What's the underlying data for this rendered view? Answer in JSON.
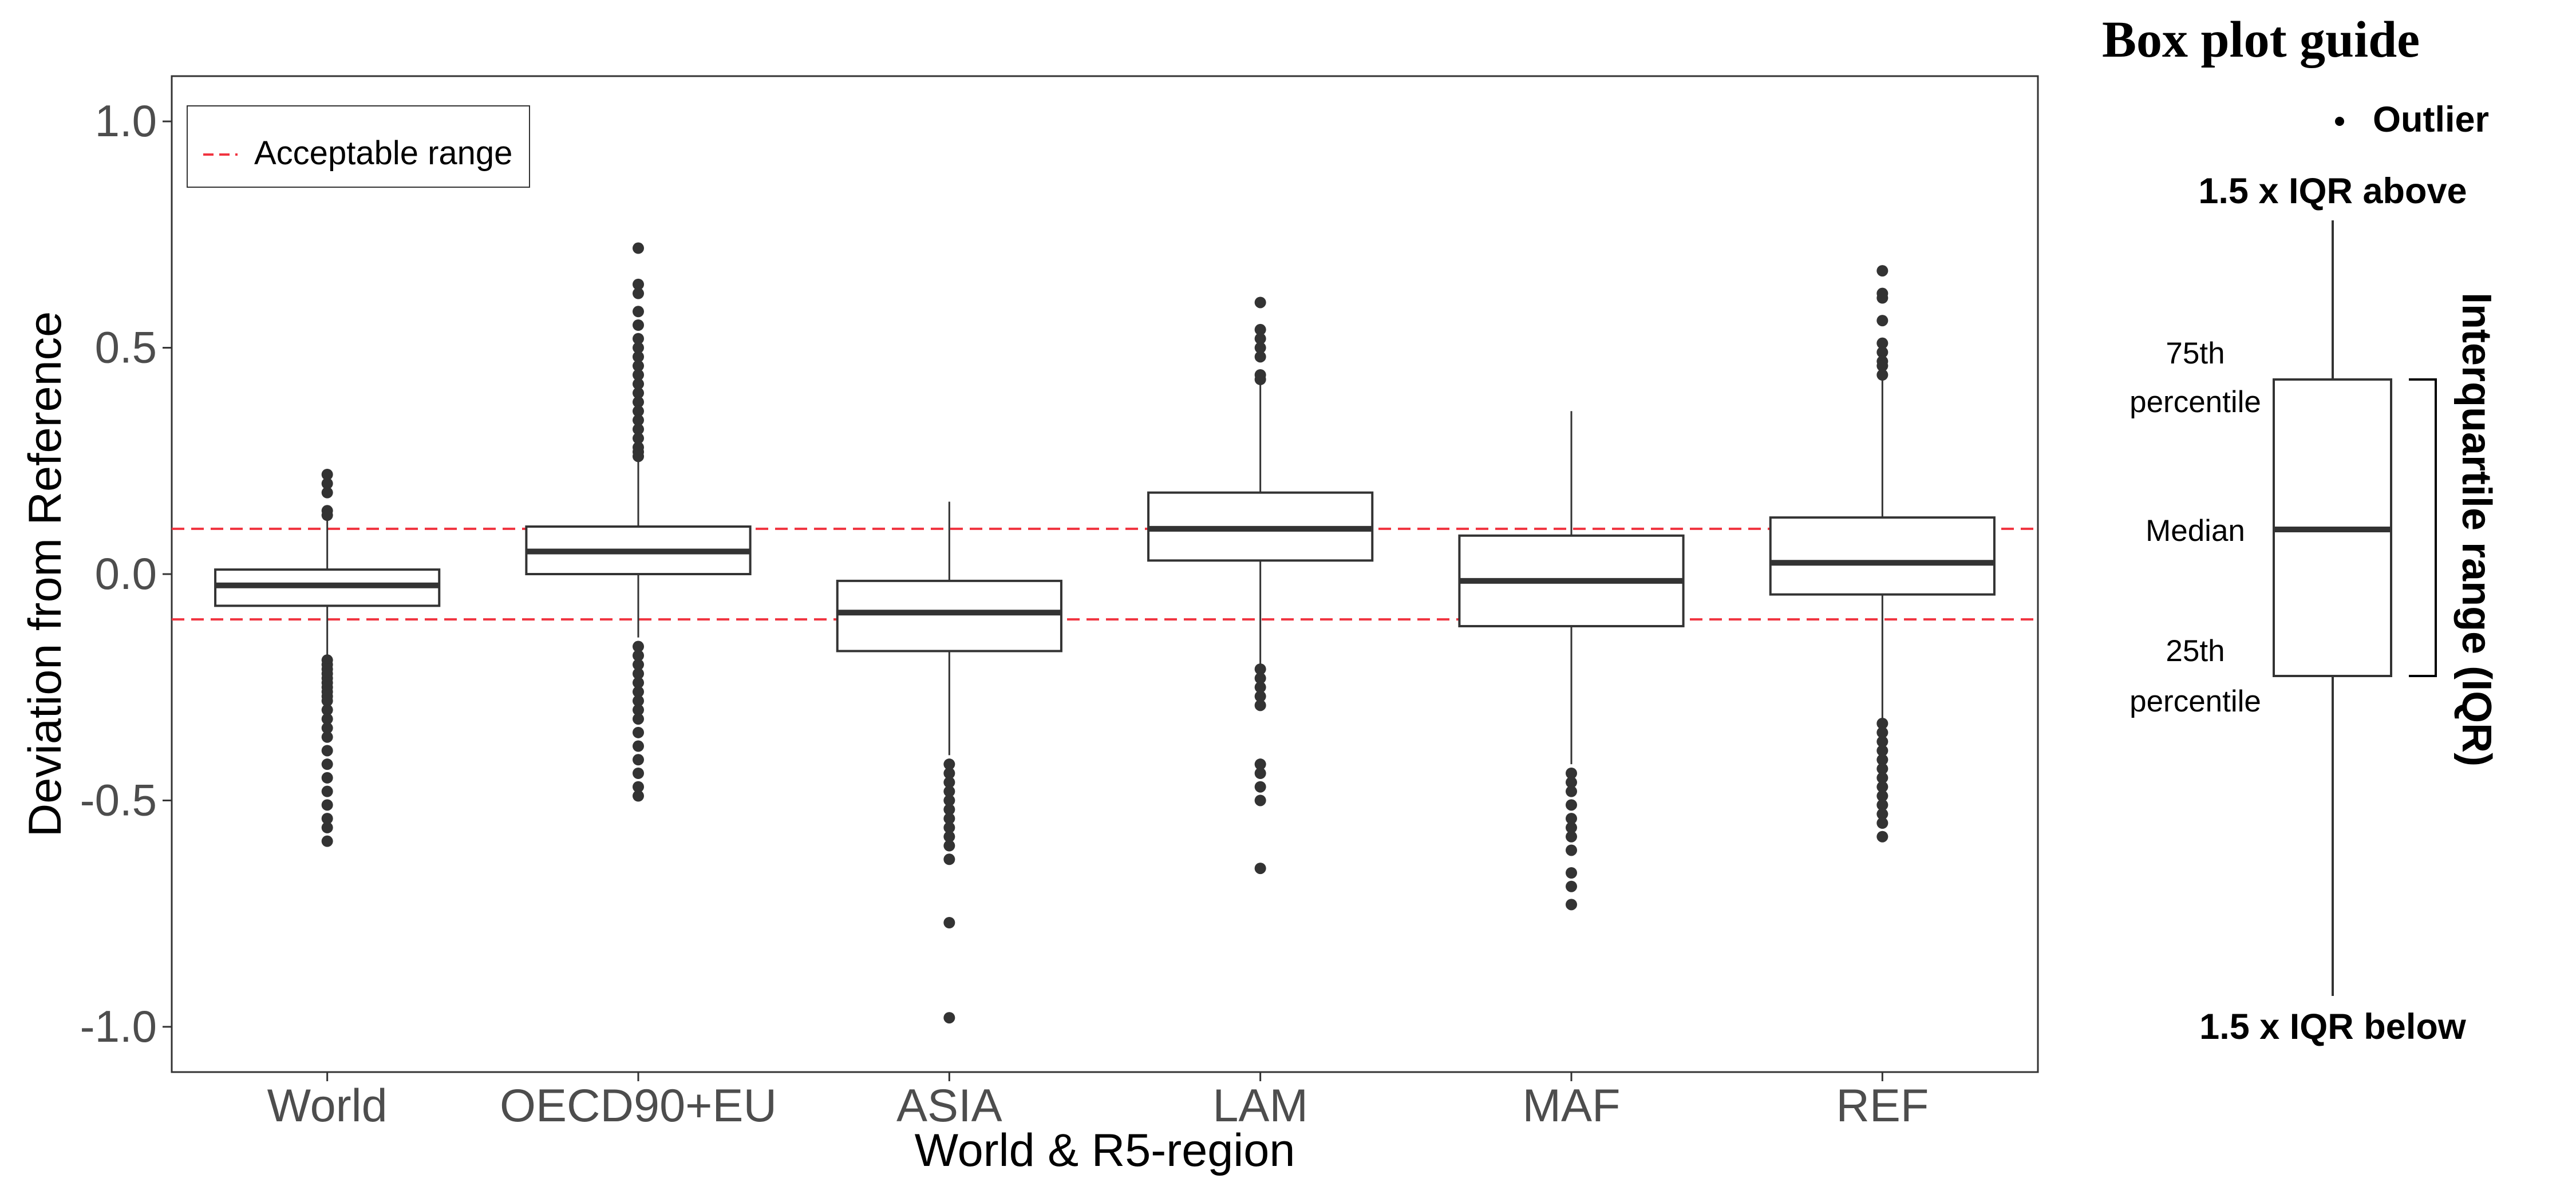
{
  "chart_data": {
    "type": "boxplot",
    "title": "",
    "xlabel": "World & R5-region",
    "ylabel": "Deviation from Reference",
    "ylim": [
      -1.1,
      1.1
    ],
    "yticks": [
      1.0,
      0.5,
      0.0,
      -0.5,
      -1.0
    ],
    "ytick_labels": [
      "1.0",
      "0.5",
      "0.0",
      "-0.5",
      "-1.0"
    ],
    "grid": false,
    "legend": {
      "position": "top-left",
      "entries": [
        {
          "label": "Acceptable range",
          "style": "dashed",
          "color": "#f0333f"
        }
      ]
    },
    "reference_lines": [
      0.1,
      -0.1
    ],
    "colors": {
      "box": "#333333",
      "outlier": "#333333",
      "reference": "#f0333f"
    },
    "categories": [
      "World",
      "OECD90+EU",
      "ASIA",
      "LAM",
      "MAF",
      "REF"
    ],
    "boxes": [
      {
        "category": "World",
        "whisker_low": -0.18,
        "q1": -0.07,
        "median": -0.025,
        "q3": 0.01,
        "whisker_high": 0.12,
        "outliers": [
          0.22,
          0.2,
          0.18,
          0.14,
          0.13,
          -0.19,
          -0.2,
          -0.21,
          -0.22,
          -0.23,
          -0.24,
          -0.25,
          -0.26,
          -0.27,
          -0.28,
          -0.3,
          -0.32,
          -0.34,
          -0.36,
          -0.39,
          -0.42,
          -0.45,
          -0.48,
          -0.51,
          -0.54,
          -0.56,
          -0.59
        ]
      },
      {
        "category": "OECD90+EU",
        "whisker_low": -0.14,
        "q1": 0.0,
        "median": 0.05,
        "q3": 0.105,
        "whisker_high": 0.25,
        "outliers": [
          0.72,
          0.64,
          0.62,
          0.58,
          0.55,
          0.52,
          0.5,
          0.48,
          0.46,
          0.44,
          0.42,
          0.4,
          0.38,
          0.36,
          0.34,
          0.32,
          0.3,
          0.28,
          0.27,
          0.26,
          -0.16,
          -0.18,
          -0.2,
          -0.22,
          -0.24,
          -0.26,
          -0.28,
          -0.3,
          -0.32,
          -0.35,
          -0.38,
          -0.41,
          -0.44,
          -0.47,
          -0.49
        ]
      },
      {
        "category": "ASIA",
        "whisker_low": -0.4,
        "q1": -0.17,
        "median": -0.085,
        "q3": -0.015,
        "whisker_high": 0.16,
        "outliers": [
          -0.42,
          -0.44,
          -0.46,
          -0.48,
          -0.5,
          -0.52,
          -0.54,
          -0.56,
          -0.58,
          -0.6,
          -0.63,
          -0.77,
          -0.98
        ]
      },
      {
        "category": "LAM",
        "whisker_low": -0.2,
        "q1": 0.03,
        "median": 0.1,
        "q3": 0.18,
        "whisker_high": 0.42,
        "outliers": [
          0.6,
          0.54,
          0.52,
          0.5,
          0.48,
          0.44,
          0.43,
          -0.21,
          -0.23,
          -0.25,
          -0.27,
          -0.29,
          -0.42,
          -0.44,
          -0.47,
          -0.5,
          -0.65
        ]
      },
      {
        "category": "MAF",
        "whisker_low": -0.42,
        "q1": -0.115,
        "median": -0.015,
        "q3": 0.085,
        "whisker_high": 0.36,
        "outliers": [
          -0.44,
          -0.46,
          -0.48,
          -0.51,
          -0.54,
          -0.56,
          -0.58,
          -0.61,
          -0.66,
          -0.69,
          -0.73
        ]
      },
      {
        "category": "REF",
        "whisker_low": -0.32,
        "q1": -0.045,
        "median": 0.025,
        "q3": 0.125,
        "whisker_high": 0.43,
        "outliers": [
          0.67,
          0.62,
          0.61,
          0.56,
          0.51,
          0.49,
          0.47,
          0.46,
          0.44,
          -0.33,
          -0.35,
          -0.37,
          -0.39,
          -0.41,
          -0.43,
          -0.45,
          -0.47,
          -0.49,
          -0.51,
          -0.53,
          -0.55,
          -0.58
        ]
      }
    ]
  },
  "guide": {
    "title": "Box plot guide",
    "outlier_label": "Outlier",
    "upper_label": "1.5 x IQR above",
    "lower_label": "1.5 x IQR below",
    "p75_line1": "75th",
    "p75_line2": "percentile",
    "median_label": "Median",
    "p25_line1": "25th",
    "p25_line2": "percentile",
    "iqr_label": "Interquartile range (IQR)"
  }
}
